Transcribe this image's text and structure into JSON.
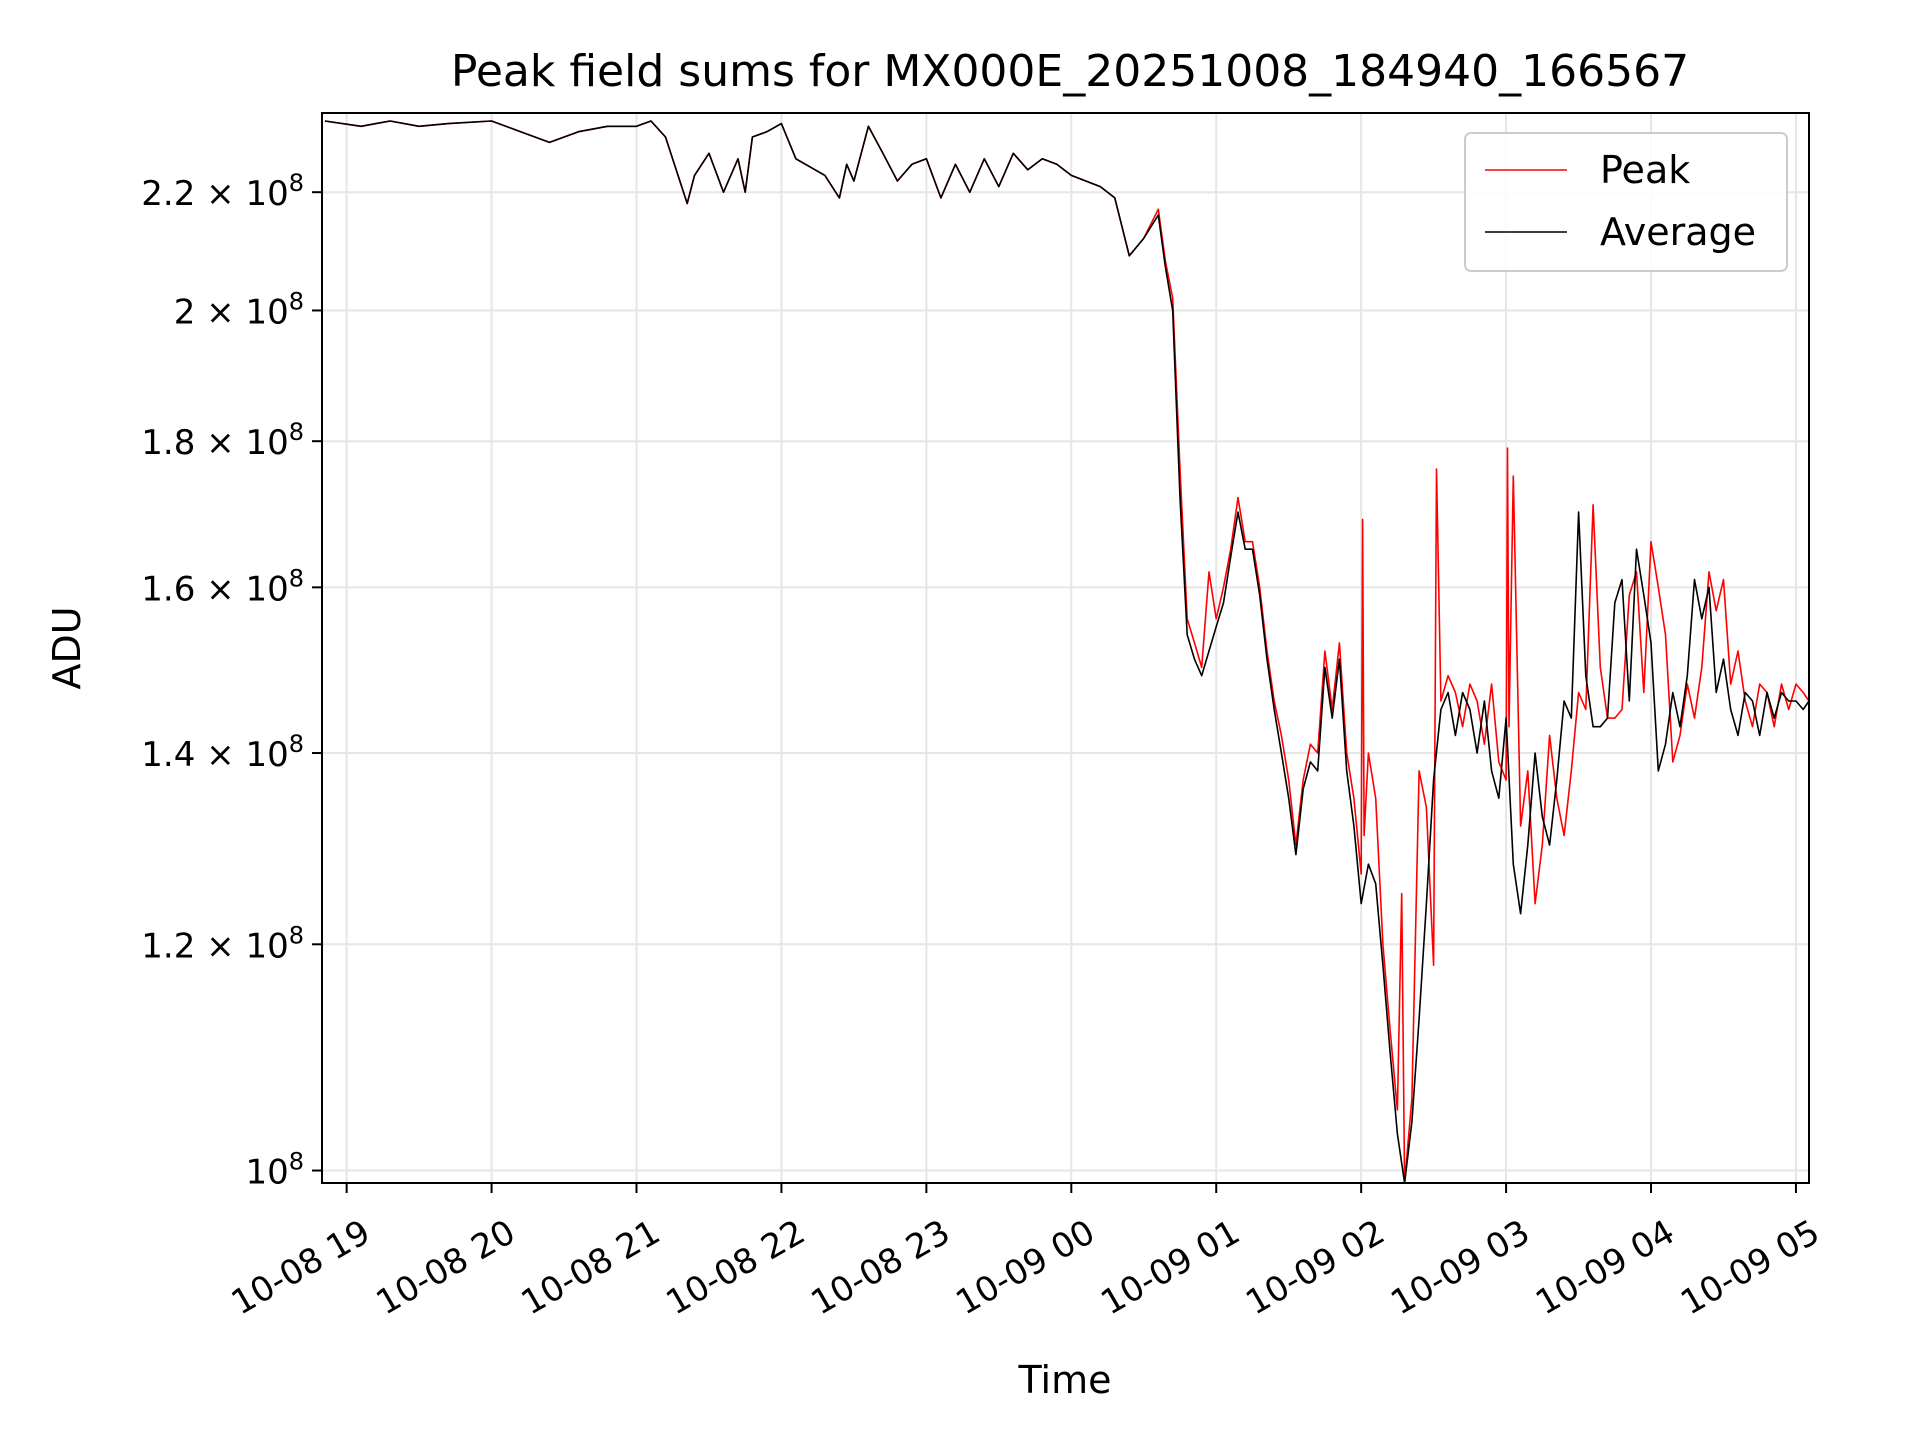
{
  "chart_data": {
    "type": "line",
    "title": "Peak field sums for MX000E_20251008_184940_166567",
    "xlabel": "Time",
    "ylabel": "ADU",
    "yscale": "log",
    "grid": true,
    "legend_position": "top-right",
    "x_range_hours": [
      -0.17,
      10.09
    ],
    "x_ticks": [
      {
        "h": 0,
        "label": "10-08 19"
      },
      {
        "h": 1,
        "label": "10-08 20"
      },
      {
        "h": 2,
        "label": "10-08 21"
      },
      {
        "h": 3,
        "label": "10-08 22"
      },
      {
        "h": 4,
        "label": "10-08 23"
      },
      {
        "h": 5,
        "label": "10-09 00"
      },
      {
        "h": 6,
        "label": "10-09 01"
      },
      {
        "h": 7,
        "label": "10-09 02"
      },
      {
        "h": 8,
        "label": "10-09 03"
      },
      {
        "h": 9,
        "label": "10-09 04"
      },
      {
        "h": 10,
        "label": "10-09 05"
      }
    ],
    "ylim": [
      99000000,
      234500000
    ],
    "y_ticks": [
      {
        "value": 100000000,
        "mant": "",
        "exp": "8"
      },
      {
        "value": 120000000,
        "mant": "1.2",
        "exp": "8"
      },
      {
        "value": 140000000,
        "mant": "1.4",
        "exp": "8"
      },
      {
        "value": 160000000,
        "mant": "1.6",
        "exp": "8"
      },
      {
        "value": 180000000,
        "mant": "1.8",
        "exp": "8"
      },
      {
        "value": 200000000,
        "mant": "2",
        "exp": "8"
      },
      {
        "value": 220000000,
        "mant": "2.2",
        "exp": "8"
      }
    ],
    "series": [
      {
        "name": "Peak",
        "color": "#ff0000",
        "x": [
          -0.15,
          0.1,
          0.3,
          0.5,
          0.7,
          1.0,
          1.2,
          1.4,
          1.6,
          1.8,
          2.0,
          2.1,
          2.2,
          2.35,
          2.4,
          2.5,
          2.6,
          2.7,
          2.75,
          2.8,
          2.9,
          3.0,
          3.1,
          3.3,
          3.4,
          3.45,
          3.5,
          3.6,
          3.7,
          3.8,
          3.9,
          4.0,
          4.1,
          4.2,
          4.3,
          4.4,
          4.5,
          4.6,
          4.7,
          4.8,
          4.9,
          5.0,
          5.2,
          5.3,
          5.4,
          5.5,
          5.6,
          5.65,
          5.7,
          5.75,
          5.8,
          5.85,
          5.9,
          5.95,
          6.0,
          6.05,
          6.1,
          6.15,
          6.2,
          6.25,
          6.3,
          6.35,
          6.4,
          6.45,
          6.5,
          6.55,
          6.6,
          6.65,
          6.7,
          6.75,
          6.8,
          6.85,
          6.9,
          6.95,
          7.0,
          7.01,
          7.02,
          7.05,
          7.1,
          7.15,
          7.2,
          7.25,
          7.28,
          7.3,
          7.35,
          7.4,
          7.45,
          7.5,
          7.52,
          7.55,
          7.6,
          7.65,
          7.7,
          7.75,
          7.8,
          7.85,
          7.9,
          7.95,
          8.0,
          8.01,
          8.02,
          8.05,
          8.1,
          8.15,
          8.2,
          8.25,
          8.3,
          8.35,
          8.4,
          8.45,
          8.5,
          8.55,
          8.6,
          8.65,
          8.7,
          8.75,
          8.8,
          8.85,
          8.9,
          8.95,
          9.0,
          9.05,
          9.1,
          9.15,
          9.2,
          9.25,
          9.3,
          9.35,
          9.4,
          9.45,
          9.5,
          9.55,
          9.6,
          9.65,
          9.7,
          9.75,
          9.8,
          9.85,
          9.9,
          9.95,
          10.0,
          10.05,
          10.09
        ],
        "values": [
          233000000,
          232000000,
          233000000,
          232000000,
          232500000,
          233000000,
          231000000,
          229000000,
          231000000,
          232000000,
          232000000,
          233000000,
          230000000,
          218000000,
          223000000,
          227000000,
          220000000,
          226000000,
          220000000,
          230000000,
          231000000,
          232500000,
          226000000,
          223000000,
          219000000,
          225000000,
          222000000,
          232000000,
          227000000,
          222000000,
          225000000,
          226000000,
          219000000,
          225000000,
          220000000,
          226000000,
          221000000,
          227000000,
          224000000,
          226000000,
          225000000,
          223000000,
          221000000,
          219000000,
          209000000,
          212000000,
          217000000,
          208000000,
          202000000,
          176000000,
          156000000,
          153000000,
          150000000,
          162000000,
          156000000,
          160000000,
          165000000,
          172000000,
          166000000,
          166000000,
          160000000,
          152000000,
          146000000,
          142000000,
          137000000,
          130000000,
          137000000,
          141000000,
          140000000,
          152000000,
          145000000,
          153000000,
          140000000,
          135000000,
          127000000,
          169000000,
          131000000,
          140000000,
          135000000,
          120000000,
          112000000,
          105000000,
          125000000,
          99000000,
          106000000,
          138000000,
          134000000,
          118000000,
          176000000,
          146000000,
          149000000,
          147000000,
          143000000,
          148000000,
          146000000,
          141000000,
          148000000,
          139000000,
          137000000,
          179000000,
          143000000,
          175000000,
          132000000,
          138000000,
          124000000,
          130000000,
          142000000,
          135000000,
          131000000,
          138000000,
          147000000,
          145000000,
          171000000,
          150000000,
          144000000,
          144000000,
          145000000,
          159000000,
          162000000,
          147000000,
          166000000,
          160000000,
          154000000,
          139000000,
          142000000,
          148000000,
          144000000,
          150000000,
          162000000,
          157000000,
          161000000,
          148000000,
          152000000,
          146000000,
          143000000,
          148000000,
          147000000,
          143000000,
          148000000,
          145000000,
          148000000,
          147000000,
          146000000
        ]
      },
      {
        "name": "Average",
        "color": "#000000",
        "x": [
          -0.15,
          0.1,
          0.3,
          0.5,
          0.7,
          1.0,
          1.2,
          1.4,
          1.6,
          1.8,
          2.0,
          2.1,
          2.2,
          2.35,
          2.4,
          2.5,
          2.6,
          2.7,
          2.75,
          2.8,
          2.9,
          3.0,
          3.1,
          3.3,
          3.4,
          3.45,
          3.5,
          3.6,
          3.7,
          3.8,
          3.9,
          4.0,
          4.1,
          4.2,
          4.3,
          4.4,
          4.5,
          4.6,
          4.7,
          4.8,
          4.9,
          5.0,
          5.2,
          5.3,
          5.4,
          5.5,
          5.6,
          5.65,
          5.7,
          5.75,
          5.8,
          5.85,
          5.9,
          5.95,
          6.0,
          6.05,
          6.1,
          6.15,
          6.2,
          6.25,
          6.3,
          6.35,
          6.4,
          6.45,
          6.5,
          6.55,
          6.6,
          6.65,
          6.7,
          6.75,
          6.8,
          6.85,
          6.9,
          6.95,
          7.0,
          7.05,
          7.1,
          7.15,
          7.2,
          7.25,
          7.3,
          7.35,
          7.4,
          7.45,
          7.5,
          7.55,
          7.6,
          7.65,
          7.7,
          7.75,
          7.8,
          7.85,
          7.9,
          7.95,
          8.0,
          8.05,
          8.1,
          8.15,
          8.2,
          8.25,
          8.3,
          8.35,
          8.4,
          8.45,
          8.5,
          8.55,
          8.6,
          8.65,
          8.7,
          8.75,
          8.8,
          8.85,
          8.9,
          8.95,
          9.0,
          9.05,
          9.1,
          9.15,
          9.2,
          9.25,
          9.3,
          9.35,
          9.4,
          9.45,
          9.5,
          9.55,
          9.6,
          9.65,
          9.7,
          9.75,
          9.8,
          9.85,
          9.9,
          9.95,
          10.0,
          10.05,
          10.09
        ],
        "values": [
          233000000,
          232000000,
          233000000,
          232000000,
          232500000,
          233000000,
          231000000,
          229000000,
          231000000,
          232000000,
          232000000,
          233000000,
          230000000,
          218000000,
          223000000,
          227000000,
          220000000,
          226000000,
          220000000,
          230000000,
          231000000,
          232500000,
          226000000,
          223000000,
          219000000,
          225000000,
          222000000,
          232000000,
          227000000,
          222000000,
          225000000,
          226000000,
          219000000,
          225000000,
          220000000,
          226000000,
          221000000,
          227000000,
          224000000,
          226000000,
          225000000,
          223000000,
          221000000,
          219000000,
          209000000,
          212000000,
          216000000,
          207000000,
          200000000,
          172000000,
          154000000,
          151000000,
          149000000,
          152000000,
          155000000,
          158000000,
          164000000,
          170000000,
          165000000,
          165000000,
          159000000,
          151000000,
          145000000,
          140000000,
          135000000,
          129000000,
          136000000,
          139000000,
          138000000,
          150000000,
          144000000,
          151000000,
          138000000,
          132000000,
          124000000,
          128000000,
          126000000,
          118000000,
          110000000,
          103000000,
          99000000,
          104000000,
          113000000,
          124000000,
          137000000,
          145000000,
          147000000,
          142000000,
          147000000,
          145000000,
          140000000,
          146000000,
          138000000,
          135000000,
          144000000,
          128000000,
          123000000,
          130000000,
          140000000,
          133000000,
          130000000,
          137000000,
          146000000,
          144000000,
          170000000,
          149000000,
          143000000,
          143000000,
          144000000,
          158000000,
          161000000,
          146000000,
          165000000,
          159000000,
          153000000,
          138000000,
          141000000,
          147000000,
          143000000,
          149000000,
          161000000,
          156000000,
          160000000,
          147000000,
          151000000,
          145000000,
          142000000,
          147000000,
          146000000,
          142000000,
          147000000,
          144000000,
          147000000,
          146000000,
          146000000,
          145000000,
          146000000
        ]
      }
    ]
  }
}
